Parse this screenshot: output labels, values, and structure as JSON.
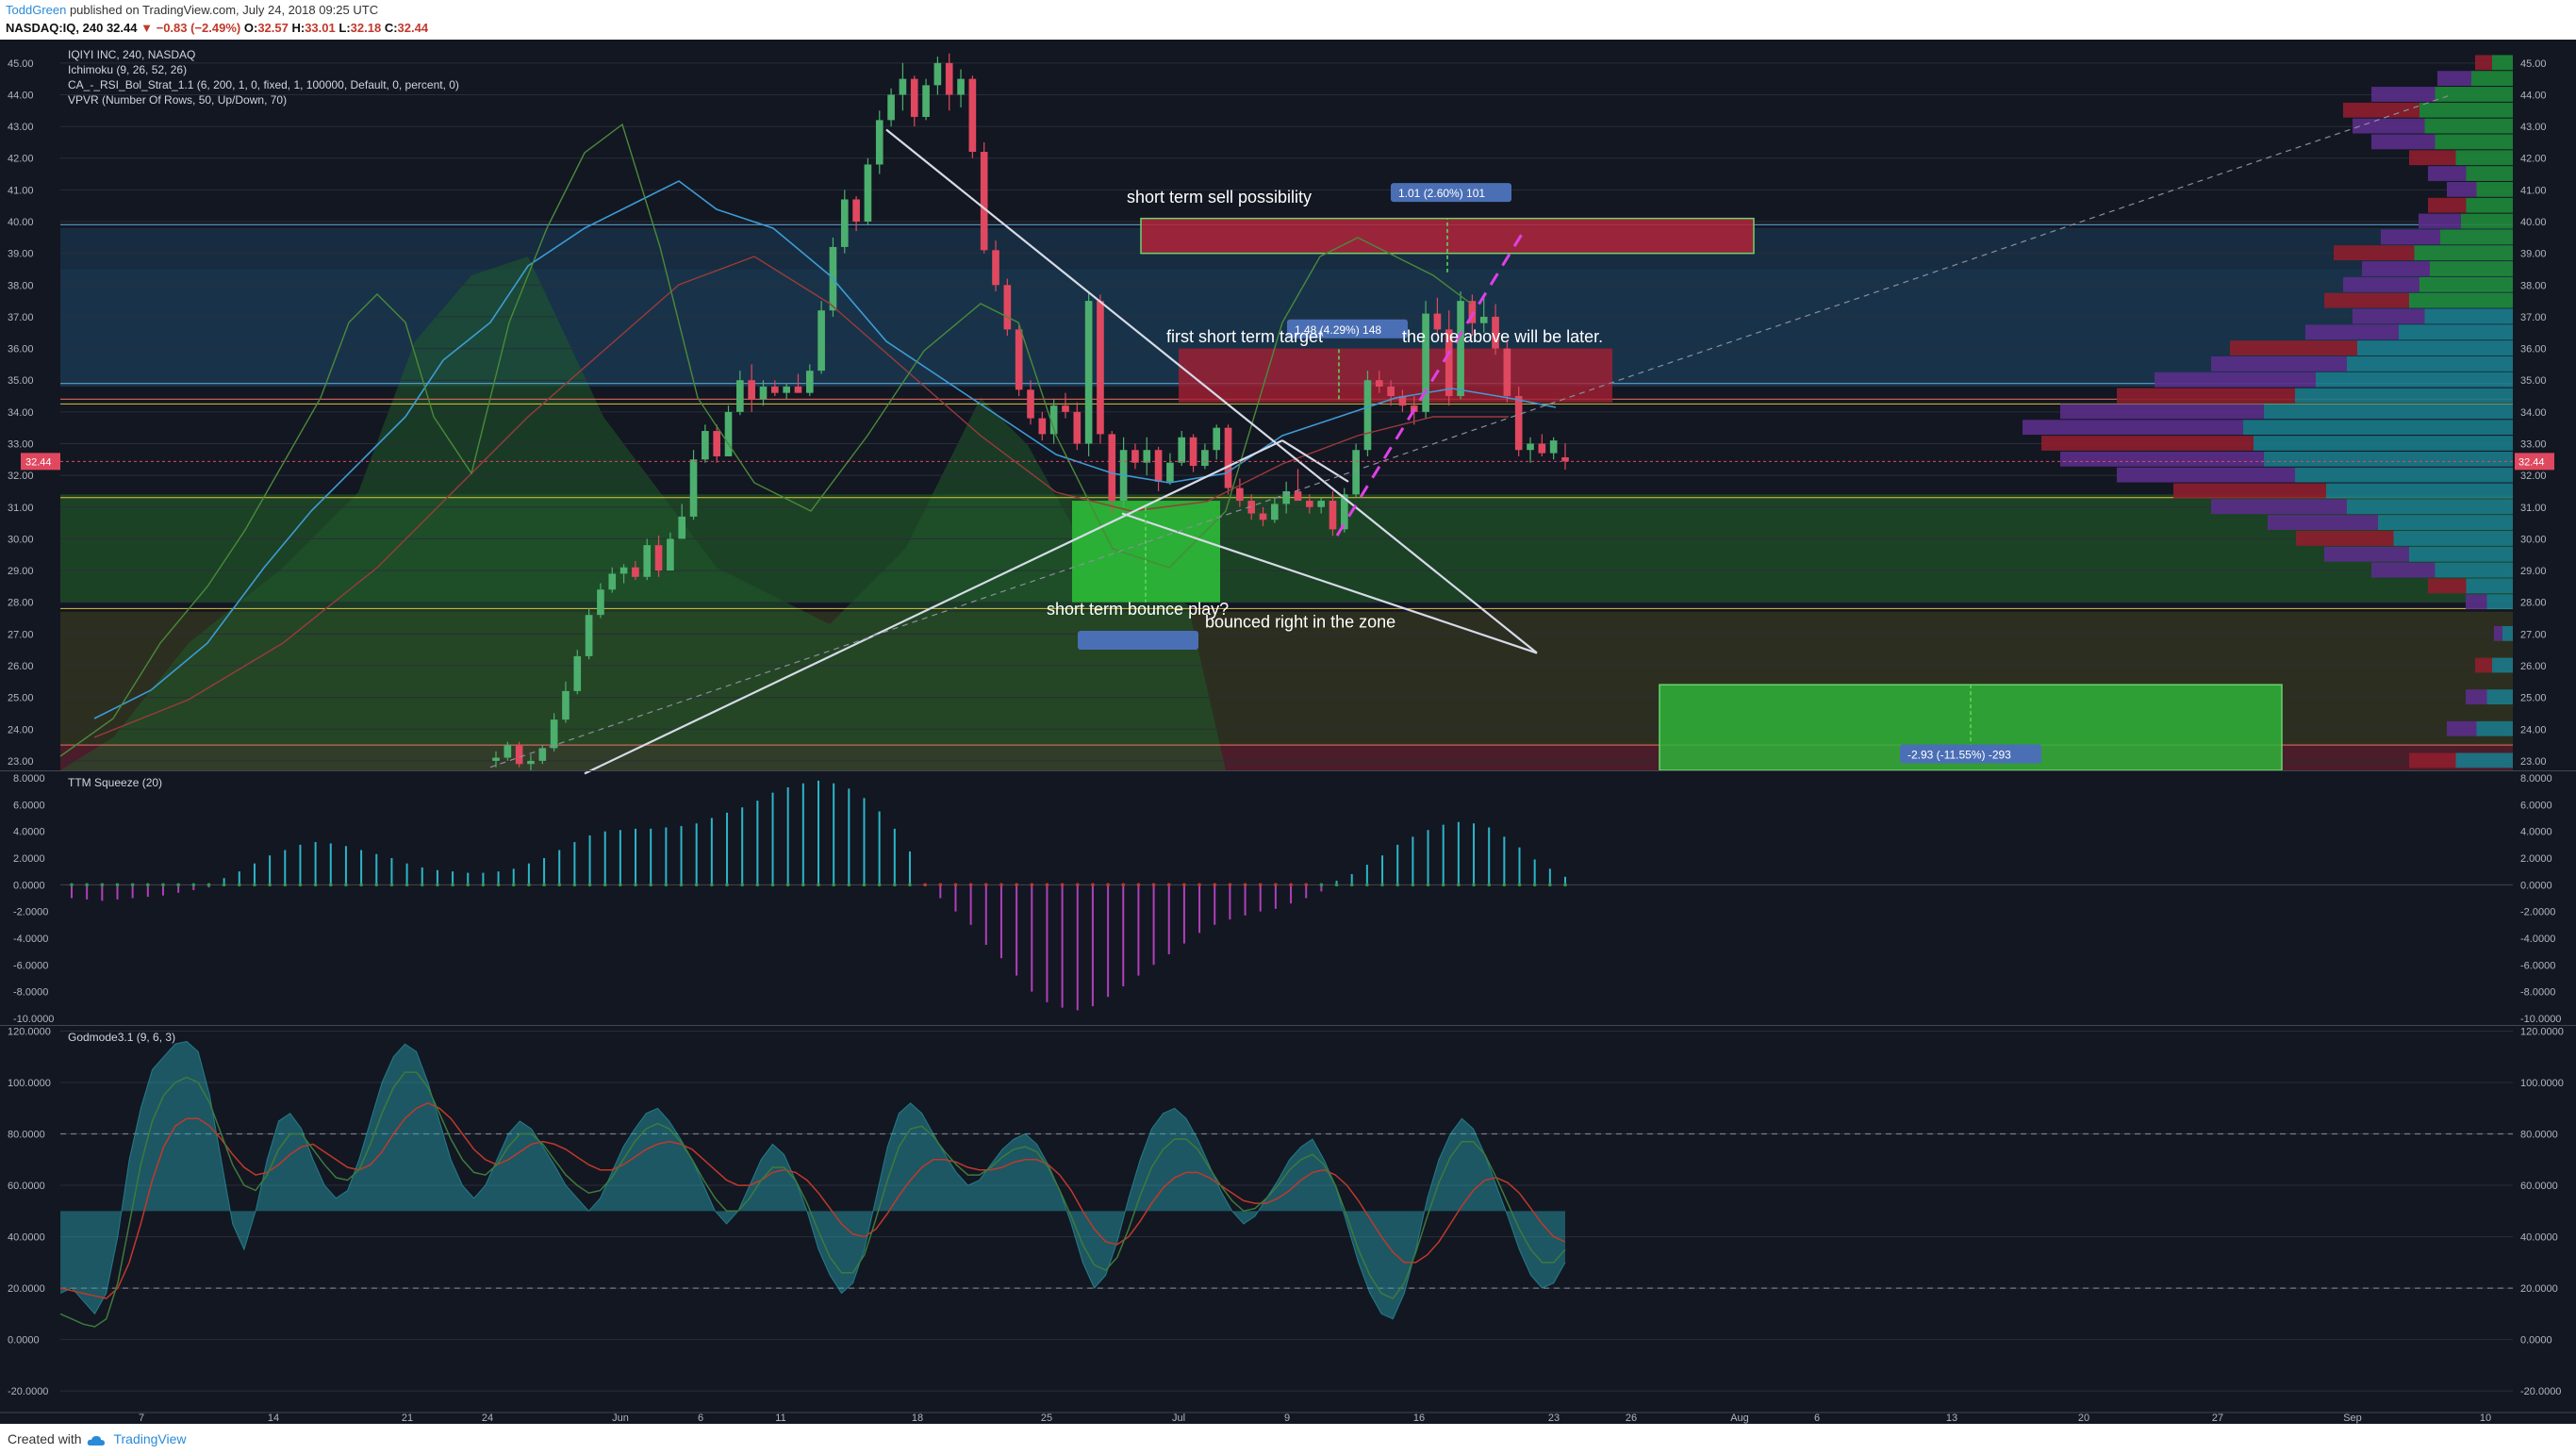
{
  "header": {
    "author": "ToddGreen",
    "published": "published on TradingView.com, July 24, 2018 09:25 UTC",
    "symbol": "NASDAQ:IQ, 240",
    "last": "32.44",
    "change": "−0.83 (−2.49%)",
    "ohlc": {
      "o": "O:",
      "ov": "32.57",
      "h": "H:",
      "hv": "33.01",
      "l": "L:",
      "lv": "32.18",
      "c": "C:",
      "cv": "32.44"
    }
  },
  "footer": {
    "created_with": "Created with",
    "brand": "TradingView"
  },
  "chart_data": [
    {
      "type": "candlestick",
      "legend": [
        "IQIYI INC, 240, NASDAQ",
        "Ichimoku (9, 26, 52, 26)",
        "CA_-_RSI_Bol_Strat_1.1 (6, 200, 1, 0, fixed, 1, 100000, Default, 0, percent, 0)",
        "VPVR (Number Of Rows, 50, Up/Down, 70)"
      ],
      "ylim": [
        22.7,
        45.5
      ],
      "y_ticks": [
        "45.00",
        "44.00",
        "43.00",
        "42.00",
        "41.00",
        "40.00",
        "39.00",
        "38.00",
        "37.00",
        "36.00",
        "35.00",
        "34.00",
        "33.00",
        "32.00",
        "31.00",
        "30.00",
        "29.00",
        "28.00",
        "27.00",
        "26.00",
        "25.00",
        "24.00",
        "23.00"
      ],
      "last_price_label": "32.44",
      "candles": [
        [
          23,
          23.3,
          22.8,
          23.1
        ],
        [
          23.1,
          23.6,
          23,
          23.5
        ],
        [
          23.5,
          23.6,
          22.8,
          22.9
        ],
        [
          22.9,
          23.2,
          22.7,
          23
        ],
        [
          23,
          23.5,
          22.9,
          23.4
        ],
        [
          23.4,
          24.5,
          23.3,
          24.3
        ],
        [
          24.3,
          25.5,
          24.2,
          25.2
        ],
        [
          25.2,
          26.5,
          25.1,
          26.3
        ],
        [
          26.3,
          27.8,
          26.2,
          27.6
        ],
        [
          27.6,
          28.6,
          27.5,
          28.4
        ],
        [
          28.4,
          29.1,
          28.3,
          28.9
        ],
        [
          28.9,
          29.2,
          28.6,
          29.1
        ],
        [
          29.1,
          29.3,
          28.7,
          28.8
        ],
        [
          28.8,
          30,
          28.7,
          29.8
        ],
        [
          29.8,
          30.1,
          28.8,
          29
        ],
        [
          29,
          30.2,
          29,
          30
        ],
        [
          30,
          31.1,
          30,
          30.7
        ],
        [
          30.7,
          32.8,
          30.6,
          32.5
        ],
        [
          32.5,
          33.6,
          32.4,
          33.4
        ],
        [
          33.4,
          33.6,
          32.4,
          32.6
        ],
        [
          32.6,
          34.2,
          32.6,
          34
        ],
        [
          34,
          35.3,
          33.9,
          35
        ],
        [
          35,
          35.5,
          34,
          34.4
        ],
        [
          34.4,
          35,
          34.2,
          34.8
        ],
        [
          34.8,
          35,
          34.5,
          34.6
        ],
        [
          34.6,
          34.9,
          34.4,
          34.8
        ],
        [
          34.8,
          35.2,
          34.6,
          34.6
        ],
        [
          34.6,
          35.5,
          34.5,
          35.3
        ],
        [
          35.3,
          37.5,
          35.2,
          37.2
        ],
        [
          37.2,
          39.5,
          37,
          39.2
        ],
        [
          39.2,
          41,
          39,
          40.7
        ],
        [
          40.7,
          40.8,
          39.7,
          40
        ],
        [
          40,
          42,
          39.9,
          41.8
        ],
        [
          41.8,
          43.5,
          41.5,
          43.2
        ],
        [
          43.2,
          44.2,
          43,
          44
        ],
        [
          44,
          45,
          43.5,
          44.5
        ],
        [
          44.5,
          44.6,
          43,
          43.3
        ],
        [
          43.3,
          44.5,
          43.2,
          44.3
        ],
        [
          44.3,
          45.2,
          44,
          45
        ],
        [
          45,
          45.3,
          43.5,
          44
        ],
        [
          44,
          44.8,
          43.6,
          44.5
        ],
        [
          44.5,
          44.6,
          42,
          42.2
        ],
        [
          42.2,
          42.5,
          39,
          39.1
        ],
        [
          39.1,
          39.4,
          37.8,
          38
        ],
        [
          38,
          38.2,
          36.4,
          36.6
        ],
        [
          36.6,
          36.8,
          34.5,
          34.7
        ],
        [
          34.7,
          35,
          33.6,
          33.8
        ],
        [
          33.8,
          34,
          33.1,
          33.3
        ],
        [
          33.3,
          34.4,
          33,
          34.2
        ],
        [
          34.2,
          34.6,
          33.8,
          34
        ],
        [
          34,
          34.3,
          32.8,
          33
        ],
        [
          33,
          37.8,
          32.6,
          37.5
        ],
        [
          37.5,
          37.7,
          33,
          33.3
        ],
        [
          33.3,
          33.4,
          30.8,
          31.2
        ],
        [
          31.2,
          33.2,
          31,
          32.8
        ],
        [
          32.8,
          33,
          32.2,
          32.4
        ],
        [
          32.4,
          33.2,
          32,
          32.8
        ],
        [
          32.8,
          32.9,
          31.5,
          31.8
        ],
        [
          31.8,
          32.7,
          31.7,
          32.4
        ],
        [
          32.4,
          33.4,
          32.3,
          33.2
        ],
        [
          33.2,
          33.3,
          32.1,
          32.3
        ],
        [
          32.3,
          33,
          32.2,
          32.8
        ],
        [
          32.8,
          33.6,
          32.5,
          33.5
        ],
        [
          33.5,
          33.6,
          31.4,
          31.6
        ],
        [
          31.6,
          31.9,
          31,
          31.2
        ],
        [
          31.2,
          31.4,
          30.6,
          30.8
        ],
        [
          30.8,
          31,
          30.4,
          30.6
        ],
        [
          30.6,
          31.3,
          30.5,
          31.1
        ],
        [
          31.1,
          31.8,
          30.8,
          31.5
        ],
        [
          31.5,
          32.2,
          31.3,
          31.2
        ],
        [
          31.2,
          31.4,
          30.8,
          31
        ],
        [
          31,
          31.3,
          30.8,
          31.2
        ],
        [
          31.2,
          31.5,
          30.1,
          30.3
        ],
        [
          30.3,
          31.6,
          30.2,
          31.4
        ],
        [
          31.4,
          33,
          31.3,
          32.8
        ],
        [
          32.8,
          35.3,
          32.6,
          35
        ],
        [
          35,
          35.3,
          34.6,
          34.8
        ],
        [
          34.8,
          35,
          34.2,
          34.5
        ],
        [
          34.5,
          34.7,
          34,
          34.2
        ],
        [
          34.2,
          34.5,
          33.6,
          34
        ],
        [
          34,
          37.5,
          33.8,
          37.1
        ],
        [
          37.1,
          37.6,
          36.4,
          36.6
        ],
        [
          36.6,
          37.2,
          34.2,
          34.5
        ],
        [
          34.5,
          37.8,
          34.4,
          37.5
        ],
        [
          37.5,
          37.7,
          36.4,
          36.8
        ],
        [
          36.8,
          37.6,
          36.5,
          37
        ],
        [
          37,
          37.4,
          35.8,
          36
        ],
        [
          36,
          36.2,
          34.3,
          34.5
        ],
        [
          34.5,
          34.8,
          32.6,
          32.8
        ],
        [
          32.8,
          33.2,
          32.4,
          33
        ],
        [
          33,
          33.3,
          32.6,
          32.7
        ],
        [
          32.7,
          33.2,
          32.5,
          33.1
        ],
        [
          32.57,
          33.01,
          32.18,
          32.44
        ]
      ],
      "annotations": [
        {
          "text": "short term sell possibility"
        },
        {
          "text": "first short term target",
          "tail": "the one above will be later."
        },
        {
          "text": "short term bounce play?"
        },
        {
          "text": "bounced right in the zone"
        }
      ],
      "measurements": [
        {
          "text": "1.01 (2.60%) 101"
        },
        {
          "text": "1.48 (4.29%) 148"
        },
        {
          "text": "-2.93 (-11.55%) -293"
        }
      ],
      "x_ticks": [
        "7",
        "14",
        "21",
        "24",
        "Jun",
        "6",
        "11",
        "18",
        "25",
        "Jul",
        "9",
        "16",
        "23",
        "26",
        "Aug",
        "6",
        "13",
        "20",
        "27",
        "Sep",
        "10"
      ]
    },
    {
      "type": "histogram",
      "title": "TTM Squeeze (20)",
      "ylim": [
        -10.5,
        8.5
      ],
      "y_ticks": [
        "8.0000",
        "6.0000",
        "4.0000",
        "2.0000",
        "0.0000",
        "-2.0000",
        "-4.0000",
        "-6.0000",
        "-8.0000",
        "-10.0000"
      ],
      "values": [
        -1,
        -1.1,
        -1.2,
        -1.1,
        -1,
        -0.9,
        -0.8,
        -0.6,
        -0.4,
        -0.2,
        0.5,
        1,
        1.6,
        2.2,
        2.6,
        3,
        3.2,
        3.1,
        2.9,
        2.6,
        2.3,
        2,
        1.6,
        1.3,
        1.1,
        1,
        0.9,
        0.9,
        1,
        1.2,
        1.6,
        2,
        2.6,
        3.2,
        3.7,
        4,
        4.1,
        4.2,
        4.2,
        4.3,
        4.4,
        4.6,
        5,
        5.4,
        5.8,
        6.3,
        6.9,
        7.3,
        7.6,
        7.8,
        7.6,
        7.2,
        6.5,
        5.5,
        4.2,
        2.5,
        0,
        -1,
        -2,
        -3,
        -4.5,
        -5.5,
        -6.8,
        -8,
        -8.8,
        -9.2,
        -9.4,
        -9.1,
        -8.4,
        -7.6,
        -6.8,
        -6,
        -5.2,
        -4.4,
        -3.6,
        -3,
        -2.6,
        -2.3,
        -2,
        -1.8,
        -1.4,
        -1,
        -0.5,
        0.3,
        0.8,
        1.5,
        2.2,
        3,
        3.6,
        4.1,
        4.5,
        4.7,
        4.6,
        4.3,
        3.6,
        2.8,
        1.9,
        1.2,
        0.6
      ]
    },
    {
      "type": "line",
      "title": "Godmode3.1 (9, 6, 3)",
      "ylim": [
        -28,
        122
      ],
      "y_ticks": [
        "120.0000",
        "100.0000",
        "80.0000",
        "60.0000",
        "40.0000",
        "20.0000",
        "0.0000",
        "-20.0000"
      ],
      "levels": [
        80,
        20
      ],
      "base": 50,
      "series": [
        {
          "color": "#2aa6b3",
          "values": [
            18,
            20,
            15,
            10,
            18,
            40,
            70,
            90,
            105,
            110,
            115,
            116,
            112,
            95,
            70,
            45,
            35,
            50,
            70,
            85,
            88,
            82,
            70,
            60,
            55,
            58,
            70,
            85,
            100,
            110,
            115,
            112,
            100,
            85,
            70,
            60,
            55,
            60,
            70,
            80,
            85,
            82,
            75,
            68,
            60,
            55,
            50,
            55,
            65,
            75,
            82,
            88,
            90,
            85,
            78,
            70,
            60,
            50,
            45,
            50,
            60,
            70,
            76,
            72,
            62,
            50,
            35,
            25,
            18,
            22,
            35,
            55,
            75,
            88,
            92,
            88,
            80,
            72,
            65,
            60,
            62,
            68,
            74,
            78,
            80,
            76,
            68,
            58,
            45,
            30,
            20,
            25,
            38,
            55,
            70,
            82,
            88,
            90,
            86,
            78,
            68,
            58,
            50,
            45,
            48,
            55,
            62,
            70,
            75,
            78,
            70,
            60,
            45,
            30,
            18,
            10,
            8,
            18,
            35,
            55,
            70,
            80,
            86,
            82,
            72,
            60,
            48,
            35,
            25,
            20,
            22,
            30
          ]
        },
        {
          "color": "#c0392b",
          "values": [
            20,
            19,
            18,
            17,
            16,
            20,
            30,
            45,
            62,
            75,
            83,
            86,
            86,
            83,
            78,
            72,
            67,
            64,
            65,
            68,
            72,
            75,
            76,
            73,
            70,
            67,
            66,
            68,
            73,
            80,
            86,
            90,
            92,
            90,
            86,
            80,
            74,
            70,
            68,
            70,
            73,
            76,
            77,
            76,
            74,
            71,
            68,
            66,
            66,
            68,
            71,
            74,
            76,
            77,
            76,
            74,
            70,
            66,
            62,
            60,
            60,
            62,
            65,
            66,
            65,
            62,
            57,
            51,
            45,
            41,
            40,
            43,
            49,
            56,
            62,
            67,
            70,
            70,
            69,
            67,
            66,
            66,
            67,
            69,
            70,
            70,
            68,
            64,
            58,
            50,
            43,
            38,
            37,
            40,
            46,
            53,
            59,
            63,
            65,
            65,
            63,
            60,
            57,
            54,
            53,
            53,
            55,
            58,
            62,
            65,
            66,
            64,
            60,
            54,
            47,
            40,
            34,
            30,
            30,
            33,
            38,
            45,
            52,
            58,
            62,
            63,
            61,
            57,
            51,
            45,
            40,
            38
          ]
        },
        {
          "color": "#3d7a3d",
          "values": [
            10,
            8,
            6,
            5,
            8,
            22,
            45,
            68,
            85,
            95,
            100,
            102,
            100,
            92,
            80,
            68,
            60,
            58,
            64,
            74,
            80,
            80,
            74,
            68,
            63,
            62,
            66,
            76,
            88,
            98,
            104,
            104,
            98,
            88,
            78,
            70,
            65,
            64,
            68,
            75,
            80,
            80,
            76,
            70,
            64,
            60,
            57,
            58,
            63,
            70,
            77,
            82,
            84,
            82,
            77,
            70,
            62,
            55,
            50,
            50,
            55,
            62,
            67,
            67,
            62,
            53,
            42,
            32,
            26,
            26,
            33,
            47,
            62,
            75,
            82,
            83,
            79,
            73,
            68,
            64,
            64,
            67,
            71,
            74,
            75,
            73,
            67,
            58,
            48,
            37,
            29,
            27,
            32,
            43,
            56,
            67,
            74,
            78,
            78,
            74,
            67,
            60,
            54,
            50,
            51,
            55,
            60,
            66,
            70,
            72,
            68,
            60,
            48,
            35,
            25,
            18,
            16,
            22,
            34,
            48,
            61,
            71,
            77,
            77,
            72,
            63,
            53,
            43,
            35,
            30,
            30,
            35
          ]
        }
      ],
      "x_ticks": [
        "7",
        "14",
        "21",
        "24",
        "Jun",
        "6",
        "11",
        "18",
        "25",
        "Jul",
        "9",
        "16",
        "23",
        "26",
        "Aug",
        "6",
        "13",
        "20",
        "27",
        "Sep",
        "10"
      ]
    }
  ]
}
